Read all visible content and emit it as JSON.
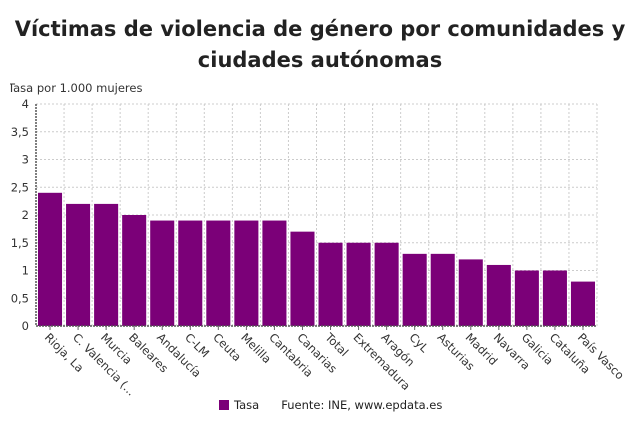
{
  "chart_data": {
    "type": "bar",
    "title": "Víctimas de violencia de género por comunidades y ciudades autónomas",
    "ylabel": "Tasa por 1.000 mujeres",
    "xlabel": "",
    "categories": [
      "Rioja, La",
      "C. Valencia (...",
      "Murcia",
      "Baleares",
      "Andalucía",
      "C-LM",
      "Ceuta",
      "Melilla",
      "Cantabria",
      "Canarias",
      "Total",
      "Extremadura",
      "Aragón",
      "CyL",
      "Asturias",
      "Madrid",
      "Navarra",
      "Galicia",
      "Cataluña",
      "País Vasco"
    ],
    "series": [
      {
        "name": "Tasa",
        "values": [
          2.4,
          2.2,
          2.2,
          2.0,
          1.9,
          1.9,
          1.9,
          1.9,
          1.9,
          1.7,
          1.5,
          1.5,
          1.5,
          1.3,
          1.3,
          1.2,
          1.1,
          1.0,
          1.0,
          0.8
        ]
      }
    ],
    "ylim": [
      0,
      4
    ],
    "yticks": [
      "0",
      "0,5",
      "1",
      "1,5",
      "2",
      "2,5",
      "3",
      "3,5",
      "4"
    ],
    "grid": true,
    "legend_position": "bottom",
    "bar_color": "#7b0078"
  },
  "legend": {
    "label": "Tasa"
  },
  "source": "Fuente: INE, www.epdata.es"
}
